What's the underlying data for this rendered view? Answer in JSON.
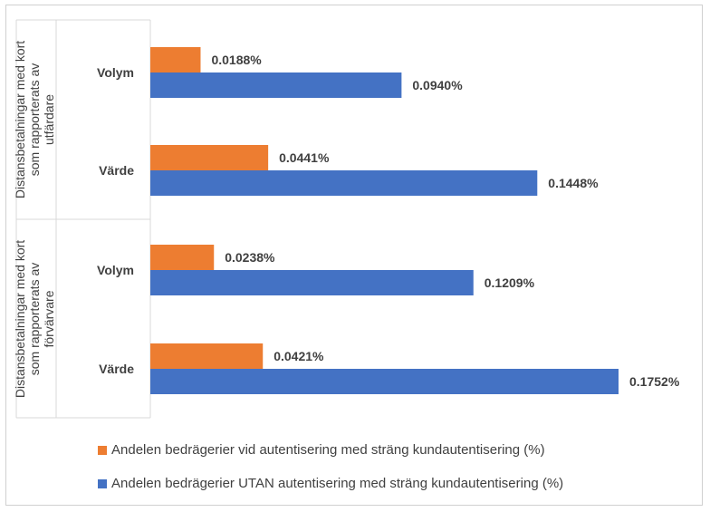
{
  "chart_data": {
    "type": "bar",
    "orientation": "horizontal",
    "groups": [
      {
        "label": "Distansbetalningar med kort som rapporterats av utfärdare",
        "categories": [
          "Volym",
          "Värde"
        ]
      },
      {
        "label": "Distansbetalningar med kort som rapporterats av förvärvare",
        "categories": [
          "Volym",
          "Värde"
        ]
      }
    ],
    "series": [
      {
        "name": "Andelen bedrägerier vid autentisering med sträng kundautentisering (%)",
        "color": "#ED7D31",
        "values": [
          0.0188,
          0.0441,
          0.0238,
          0.0421
        ],
        "labels": [
          "0.0188%",
          "0.0441%",
          "0.0238%",
          "0.0421%"
        ]
      },
      {
        "name": "Andelen bedrägerier UTAN autentisering med sträng kundautentisering (%)",
        "color": "#4472C4",
        "values": [
          0.094,
          0.1448,
          0.1209,
          0.1752
        ],
        "labels": [
          "0.0940%",
          "0.1448%",
          "0.1209%",
          "0.1752%"
        ]
      }
    ],
    "xlim": [
      0,
      0.18
    ],
    "grid": false,
    "legend": "bottom"
  }
}
